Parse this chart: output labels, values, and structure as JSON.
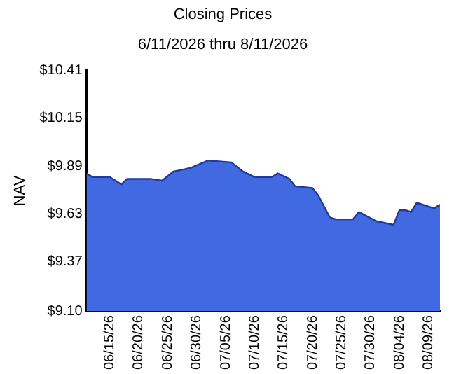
{
  "chart_data": {
    "type": "area",
    "title": "Closing Prices",
    "subtitle": "6/11/2026 thru 8/11/2026",
    "ylabel": "NAV",
    "x": [
      "2026-06-11",
      "2026-06-12",
      "2026-06-15",
      "2026-06-17",
      "2026-06-18",
      "2026-06-22",
      "2026-06-24",
      "2026-06-26",
      "2026-06-29",
      "2026-07-02",
      "2026-07-06",
      "2026-07-08",
      "2026-07-10",
      "2026-07-13",
      "2026-07-14",
      "2026-07-16",
      "2026-07-17",
      "2026-07-20",
      "2026-07-21",
      "2026-07-23",
      "2026-07-24",
      "2026-07-27",
      "2026-07-28",
      "2026-07-31",
      "2026-08-03",
      "2026-08-04",
      "2026-08-05",
      "2026-08-06",
      "2026-08-07",
      "2026-08-10",
      "2026-08-11"
    ],
    "series": [
      {
        "color": "#4169e1",
        "values": [
          9.85,
          9.83,
          9.83,
          9.79,
          9.82,
          9.82,
          9.81,
          9.86,
          9.88,
          9.92,
          9.91,
          9.86,
          9.83,
          9.83,
          9.85,
          9.82,
          9.78,
          9.77,
          9.73,
          9.61,
          9.6,
          9.6,
          9.64,
          9.59,
          9.57,
          9.65,
          9.65,
          9.64,
          9.69,
          9.66,
          9.68
        ]
      }
    ],
    "xlim": [
      "2026-06-11",
      "2026-08-11"
    ],
    "xticks": [
      {
        "value": "2026-06-15",
        "label": "06/15/26"
      },
      {
        "value": "2026-06-20",
        "label": "06/20/26"
      },
      {
        "value": "2026-06-25",
        "label": "06/25/26"
      },
      {
        "value": "2026-06-30",
        "label": "06/30/26"
      },
      {
        "value": "2026-07-05",
        "label": "07/05/26"
      },
      {
        "value": "2026-07-10",
        "label": "07/10/26"
      },
      {
        "value": "2026-07-15",
        "label": "07/15/26"
      },
      {
        "value": "2026-07-20",
        "label": "07/20/26"
      },
      {
        "value": "2026-07-25",
        "label": "07/25/26"
      },
      {
        "value": "2026-07-30",
        "label": "07/30/26"
      },
      {
        "value": "2026-08-04",
        "label": "08/04/26"
      },
      {
        "value": "2026-08-09",
        "label": "08/09/26"
      }
    ],
    "ylim": [
      9.1,
      10.41
    ],
    "yticks": [
      {
        "value": 9.1,
        "label": "$9.10"
      },
      {
        "value": 9.37,
        "label": "$9.37"
      },
      {
        "value": 9.63,
        "label": "$9.63"
      },
      {
        "value": 9.89,
        "label": "$9.89"
      },
      {
        "value": 10.15,
        "label": "$10.15"
      },
      {
        "value": 10.41,
        "label": "$10.41"
      }
    ],
    "grid": false,
    "legend": false
  }
}
